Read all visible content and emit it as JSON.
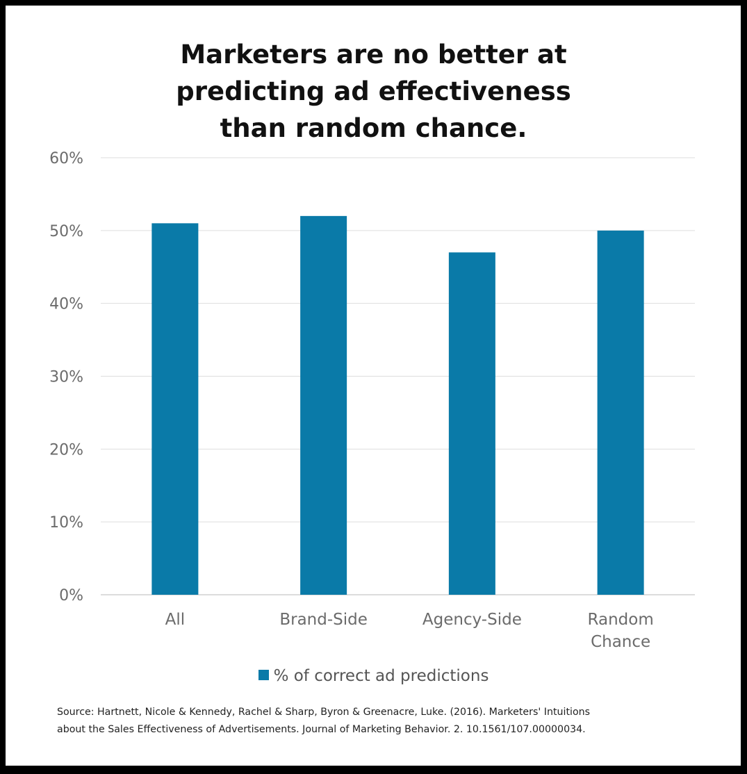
{
  "title_lines": [
    "Marketers are no better at",
    "predicting ad effectiveness",
    "than random chance."
  ],
  "chart_data": {
    "type": "bar",
    "title": "Marketers are no better at predicting ad effectiveness than random chance.",
    "categories": [
      [
        "All"
      ],
      [
        "Brand-Side"
      ],
      [
        "Agency-Side"
      ],
      [
        "Random",
        "Chance"
      ]
    ],
    "series": [
      {
        "name": "% of correct ad predictions",
        "values": [
          51,
          52,
          47,
          50
        ],
        "color": "#0a7aa8"
      }
    ],
    "ylim": [
      0,
      60
    ],
    "yticks": [
      0,
      10,
      20,
      30,
      40,
      50,
      60
    ],
    "ytick_suffix": "%",
    "grid": true,
    "legend_position": "bottom"
  },
  "legend": {
    "label": "% of correct ad predictions",
    "color": "#0a7aa8"
  },
  "source_lines": [
    "Source: Hartnett, Nicole & Kennedy, Rachel & Sharp, Byron & Greenacre, Luke. (2016). Marketers' Intuitions",
    "about the Sales Effectiveness of Advertisements. Journal of Marketing Behavior. 2. 10.1561/107.00000034."
  ]
}
